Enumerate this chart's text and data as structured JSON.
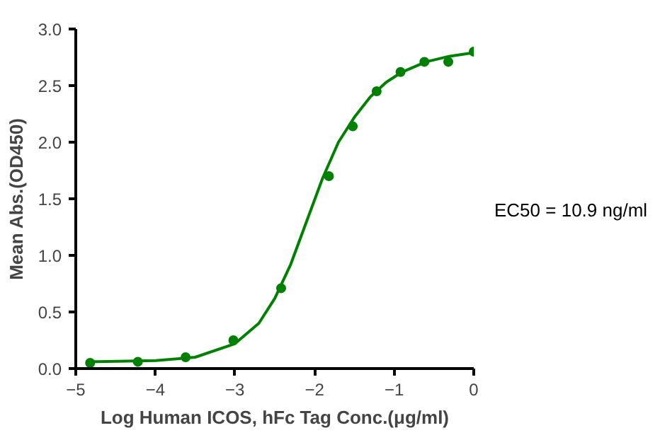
{
  "chart_data": {
    "type": "scatter",
    "xlabel": "Log Human ICOS, hFc Tag Conc.(μg/ml)",
    "ylabel": "Mean Abs.(OD450)",
    "xlim": [
      -5,
      0
    ],
    "ylim": [
      0,
      3.0
    ],
    "xticks": [
      -5,
      -4,
      -3,
      -2,
      -1,
      0
    ],
    "yticks": [
      {
        "value": 0,
        "label": "0.0"
      },
      {
        "value": 0.5,
        "label": "0.5"
      },
      {
        "value": 1,
        "label": "1.0"
      },
      {
        "value": 1.5,
        "label": "1.5"
      },
      {
        "value": 2,
        "label": "2.0"
      },
      {
        "value": 2.5,
        "label": "2.5"
      },
      {
        "value": 3,
        "label": "3.0"
      }
    ],
    "grid": false,
    "marker": "circle",
    "annotations": [
      "EC50 = 10.9 ng/ml"
    ],
    "series": [
      {
        "color": "#008000",
        "x": [
          -4.82,
          -4.22,
          -3.62,
          -3.02,
          -2.42,
          -1.82,
          -1.52,
          -1.22,
          -0.92,
          -0.62,
          -0.32,
          0
        ],
        "values": [
          0.05,
          0.06,
          0.1,
          0.25,
          0.71,
          1.7,
          2.14,
          2.45,
          2.62,
          2.71,
          2.71,
          2.8
        ]
      },
      {
        "type": "line",
        "color": "#008000",
        "marker": "none",
        "line_style": "solid",
        "x": [
          -4.85,
          -4.0,
          -3.5,
          -3.0,
          -2.7,
          -2.5,
          -2.3,
          -2.1,
          -1.9,
          -1.7,
          -1.5,
          -1.3,
          -1.1,
          -0.9,
          -0.6,
          -0.3,
          0
        ],
        "values": [
          0.06,
          0.07,
          0.1,
          0.22,
          0.4,
          0.62,
          0.92,
          1.3,
          1.68,
          2.0,
          2.22,
          2.4,
          2.53,
          2.62,
          2.71,
          2.76,
          2.79
        ]
      }
    ]
  }
}
